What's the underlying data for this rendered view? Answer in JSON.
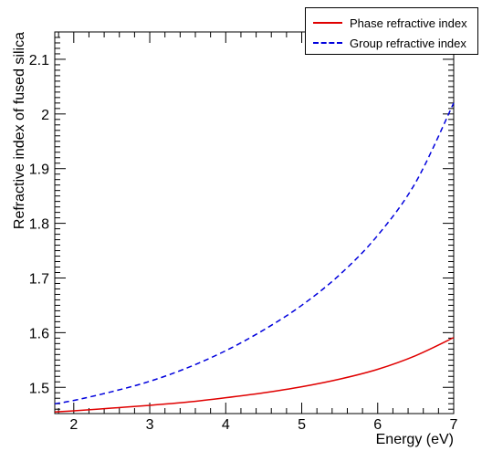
{
  "chart_data": {
    "type": "line",
    "xlabel": "Energy (eV)",
    "ylabel": "Refractive index of fused silica",
    "xlim": [
      1.75,
      7.0
    ],
    "ylim": [
      1.452,
      2.15
    ],
    "xticks": [
      "2",
      "3",
      "4",
      "5",
      "6",
      "7"
    ],
    "yticks": [
      "1.5",
      "1.6",
      "1.7",
      "1.8",
      "1.9",
      "2",
      "2.1"
    ],
    "grid": false,
    "legend_position": "top-right",
    "series": [
      {
        "name": "Phase refractive index",
        "color": "#e00000",
        "style": "solid",
        "x": [
          1.75,
          2.0,
          2.5,
          3.0,
          3.5,
          4.0,
          4.5,
          5.0,
          5.5,
          6.0,
          6.5,
          7.0
        ],
        "y": [
          1.455,
          1.457,
          1.462,
          1.467,
          1.473,
          1.481,
          1.49,
          1.501,
          1.515,
          1.533,
          1.558,
          1.591
        ]
      },
      {
        "name": "Group refractive index",
        "color": "#0000dd",
        "style": "dashed",
        "x": [
          1.75,
          2.0,
          2.5,
          3.0,
          3.5,
          4.0,
          4.5,
          5.0,
          5.5,
          6.0,
          6.5,
          7.0
        ],
        "y": [
          1.47,
          1.476,
          1.492,
          1.511,
          1.536,
          1.567,
          1.605,
          1.65,
          1.706,
          1.778,
          1.875,
          2.02
        ]
      }
    ]
  }
}
